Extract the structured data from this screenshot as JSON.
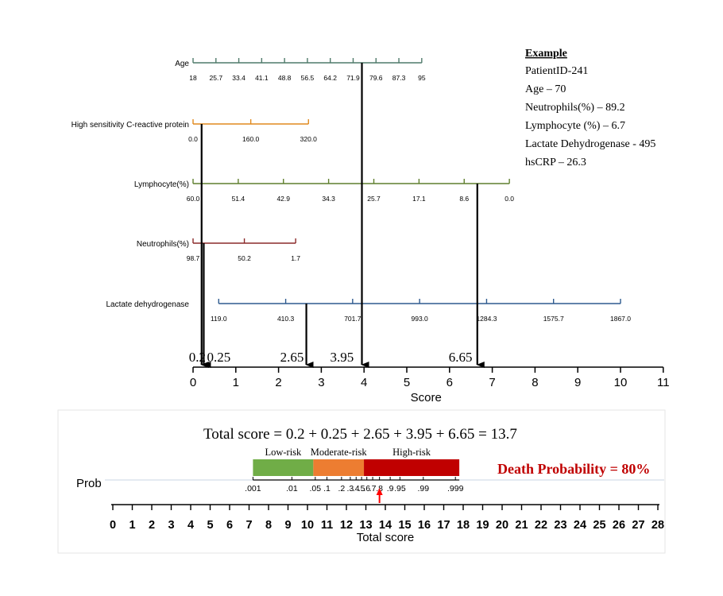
{
  "nomogram": {
    "score_axis": {
      "title": "Score",
      "min": 0,
      "max": 11,
      "ticks": [
        "0",
        "1",
        "2",
        "3",
        "4",
        "5",
        "6",
        "7",
        "8",
        "9",
        "10",
        "11"
      ]
    },
    "variables": [
      {
        "name": "Age",
        "color": "#4f7a6a",
        "axis_range": [
          0,
          5.35
        ],
        "tick_positions": [
          0,
          0.535,
          1.07,
          1.605,
          2.14,
          2.675,
          3.21,
          3.745,
          4.28,
          4.815,
          5.35
        ],
        "tick_labels": [
          "18",
          "25.7",
          "33.4",
          "41.1",
          "48.8",
          "56.5",
          "64.2",
          "71.9",
          "79.6",
          "87.3",
          "95"
        ]
      },
      {
        "name": "High sensitivity C-reactive protein",
        "color": "#e08a1e",
        "axis_range": [
          0,
          2.7
        ],
        "tick_positions": [
          0,
          1.35,
          2.7
        ],
        "tick_labels": [
          "0.0",
          "160.0",
          "320.0"
        ]
      },
      {
        "name": "Lymphocyte(%)",
        "color": "#5f7f2e",
        "axis_range": [
          0,
          7.4
        ],
        "tick_positions": [
          0,
          1.057,
          2.114,
          3.171,
          4.229,
          5.286,
          6.343,
          7.4
        ],
        "tick_labels": [
          "60.0",
          "51.4",
          "42.9",
          "34.3",
          "25.7",
          "17.1",
          "8.6",
          "0.0"
        ]
      },
      {
        "name": "Neutrophils(%)",
        "color": "#8b2a2a",
        "axis_range": [
          0,
          2.4
        ],
        "tick_positions": [
          0,
          1.2,
          2.4
        ],
        "tick_labels": [
          "98.7",
          "50.2",
          "1.7"
        ]
      },
      {
        "name": "Lactate dehydrogenase",
        "color": "#2e5a8f",
        "axis_range": [
          0.6,
          10
        ],
        "tick_positions": [
          0.6,
          2.167,
          3.733,
          5.3,
          6.867,
          8.433,
          10
        ],
        "tick_labels": [
          "119.0",
          "410.3",
          "701.7",
          "993.0",
          "1284.3",
          "1575.7",
          "1867.0"
        ]
      }
    ],
    "example_arrows": [
      {
        "score": 0.2,
        "label": "0.2",
        "from": 1
      },
      {
        "score": 0.25,
        "label": "0.25",
        "from": 3
      },
      {
        "score": 2.65,
        "label": "2.65",
        "from": 4
      },
      {
        "score": 3.95,
        "label": "3.95",
        "from": 0
      },
      {
        "score": 6.65,
        "label": "6.65",
        "from": 2
      }
    ],
    "example": {
      "heading": "Example",
      "lines": [
        "PatientID-241",
        "Age – 70",
        "Neutrophils(%) – 89.2",
        "Lymphocyte (%) – 6.7",
        "Lactate  Dehydrogenase  - 495",
        "hsCRP – 26.3"
      ]
    }
  },
  "probability": {
    "total_score_formula": "Total score = 0.2 + 0.25 + 2.65 + 3.95 + 6.65 = 13.7",
    "total_axis": {
      "title": "Total score",
      "min": 0,
      "max": 28,
      "ticks": [
        "0",
        "1",
        "2",
        "3",
        "4",
        "5",
        "6",
        "7",
        "8",
        "9",
        "10",
        "11",
        "12",
        "13",
        "14",
        "15",
        "16",
        "17",
        "18",
        "19",
        "20",
        "21",
        "22",
        "23",
        "24",
        "25",
        "26",
        "27",
        "28"
      ]
    },
    "prob_label": "Prob",
    "prob_axis_range": [
      7.2,
      17.8
    ],
    "prob_ticks": [
      {
        "label": ".001",
        "score": 7.2
      },
      {
        "label": ".01",
        "score": 9.2
      },
      {
        "label": ".05",
        "score": 10.4
      },
      {
        "label": ".1",
        "score": 11.0
      },
      {
        "label": ".2",
        "score": 11.75
      },
      {
        "label": ".3",
        "score": 12.2
      },
      {
        "label": ".4",
        "score": 12.5
      },
      {
        "label": ".5",
        "score": 12.78
      },
      {
        "label": ".6",
        "score": 13.05
      },
      {
        "label": ".7",
        "score": 13.35
      },
      {
        "label": ".8",
        "score": 13.7
      },
      {
        "label": ".9",
        "score": 14.25
      },
      {
        "label": ".95",
        "score": 14.75
      },
      {
        "label": ".99",
        "score": 15.95
      },
      {
        "label": ".999",
        "score": 17.6
      }
    ],
    "risk_bands": [
      {
        "label": "Low-risk",
        "start": 7.2,
        "end": 10.3,
        "color": "#70ad47"
      },
      {
        "label": "Moderate-risk",
        "start": 10.3,
        "end": 12.9,
        "color": "#ed7d31"
      },
      {
        "label": "High-risk",
        "start": 12.9,
        "end": 17.8,
        "color": "#c00000"
      }
    ],
    "pointer_score": 13.7,
    "pointer_color": "#ff0000",
    "death_probability": "Death Probability = 80%",
    "death_color": "#c00000"
  }
}
